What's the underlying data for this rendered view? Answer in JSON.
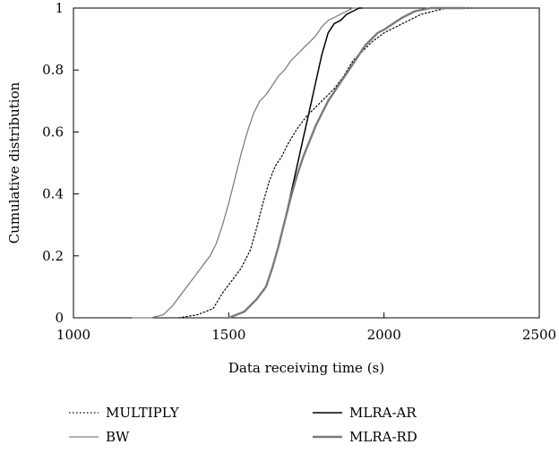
{
  "chart_data": {
    "type": "line",
    "title": "",
    "xlabel": "Data receiving time (s)",
    "ylabel": "Cumulative distribution",
    "xlim": [
      1000,
      2500
    ],
    "ylim": [
      0,
      1
    ],
    "x_ticks": [
      1000,
      1500,
      2000,
      2500
    ],
    "x_tick_labels": [
      "1000",
      "1500",
      "2000",
      "2500"
    ],
    "y_ticks": [
      0,
      0.2,
      0.4,
      0.6,
      0.8,
      1
    ],
    "y_tick_labels": [
      "0",
      "0.2",
      "0.4",
      "0.6",
      "0.8",
      "1"
    ],
    "grid": false,
    "legend_position": "bottom",
    "series": [
      {
        "name": "MULTIPLY",
        "color": "#000000",
        "dash": "dotted",
        "x": [
          1340,
          1400,
          1450,
          1480,
          1510,
          1540,
          1570,
          1590,
          1610,
          1630,
          1650,
          1670,
          1690,
          1720,
          1750,
          1780,
          1810,
          1840,
          1870,
          1900,
          1930,
          1960,
          2000,
          2040,
          2080,
          2120,
          2160,
          2200,
          2250,
          2290
        ],
        "y": [
          0.0,
          0.01,
          0.03,
          0.08,
          0.12,
          0.16,
          0.22,
          0.29,
          0.37,
          0.44,
          0.49,
          0.52,
          0.56,
          0.61,
          0.65,
          0.68,
          0.71,
          0.74,
          0.78,
          0.83,
          0.86,
          0.89,
          0.92,
          0.94,
          0.96,
          0.98,
          0.99,
          1.0,
          1.0,
          1.0
        ]
      },
      {
        "name": "BW",
        "color": "#808080",
        "dash": "solid",
        "x": [
          1190,
          1250,
          1290,
          1320,
          1350,
          1380,
          1410,
          1440,
          1460,
          1480,
          1500,
          1520,
          1540,
          1560,
          1580,
          1600,
          1620,
          1640,
          1660,
          1680,
          1700,
          1720,
          1740,
          1760,
          1780,
          1800,
          1820,
          1840,
          1860,
          1880,
          1900,
          1920
        ],
        "y": [
          0.0,
          0.0,
          0.01,
          0.04,
          0.08,
          0.12,
          0.16,
          0.2,
          0.24,
          0.3,
          0.37,
          0.45,
          0.53,
          0.6,
          0.66,
          0.7,
          0.72,
          0.75,
          0.78,
          0.8,
          0.83,
          0.85,
          0.87,
          0.89,
          0.91,
          0.94,
          0.96,
          0.97,
          0.98,
          0.99,
          1.0,
          1.0
        ]
      },
      {
        "name": "MLRA-AR",
        "color": "#000000",
        "dash": "solid",
        "x": [
          1500,
          1550,
          1590,
          1620,
          1640,
          1660,
          1680,
          1700,
          1720,
          1740,
          1760,
          1780,
          1800,
          1820,
          1840,
          1860,
          1880,
          1900,
          1920,
          1930
        ],
        "y": [
          0.0,
          0.02,
          0.06,
          0.1,
          0.16,
          0.23,
          0.31,
          0.4,
          0.49,
          0.58,
          0.67,
          0.76,
          0.85,
          0.92,
          0.95,
          0.96,
          0.98,
          0.99,
          1.0,
          1.0
        ]
      },
      {
        "name": "MLRA-RD",
        "color": "#7a7a7a",
        "dash": "solid",
        "x": [
          1500,
          1550,
          1590,
          1620,
          1640,
          1660,
          1680,
          1700,
          1720,
          1740,
          1760,
          1780,
          1800,
          1820,
          1840,
          1860,
          1880,
          1900,
          1920,
          1940,
          1960,
          1980,
          2000,
          2030,
          2060,
          2100,
          2150,
          2200,
          2260
        ],
        "y": [
          0.0,
          0.02,
          0.06,
          0.1,
          0.16,
          0.23,
          0.31,
          0.39,
          0.46,
          0.52,
          0.57,
          0.62,
          0.66,
          0.7,
          0.73,
          0.76,
          0.79,
          0.82,
          0.85,
          0.88,
          0.9,
          0.92,
          0.93,
          0.95,
          0.97,
          0.99,
          1.0,
          1.0,
          1.0
        ]
      }
    ]
  }
}
